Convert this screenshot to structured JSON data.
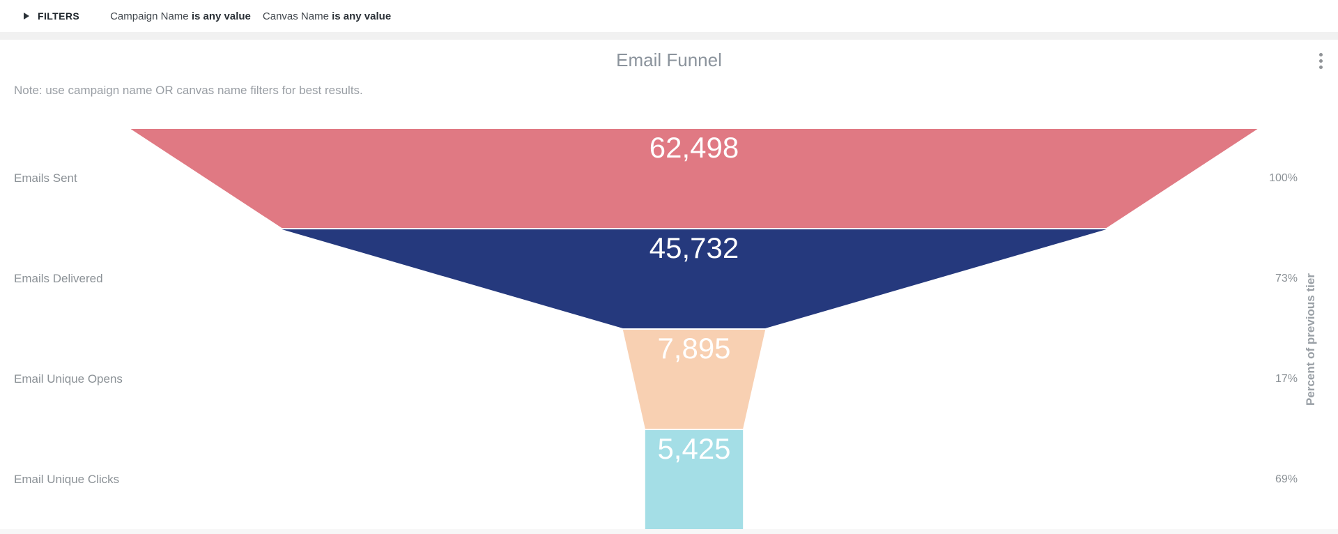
{
  "filters_bar": {
    "label": "FILTERS",
    "filters": [
      {
        "field": "Campaign Name",
        "condition": "is any value"
      },
      {
        "field": "Canvas Name",
        "condition": "is any value"
      }
    ]
  },
  "tile": {
    "title": "Email Funnel",
    "note": "Note: use campaign name OR canvas name filters for best results."
  },
  "chart_data": {
    "type": "funnel",
    "title": "Email Funnel",
    "categories": [
      "Emails Sent",
      "Emails Delivered",
      "Email Unique Opens",
      "Email Unique Clicks"
    ],
    "values": [
      62498,
      45732,
      7895,
      5425
    ],
    "value_labels": [
      "62,498",
      "45,732",
      "7,895",
      "5,425"
    ],
    "percent_of_previous": [
      "100%",
      "73%",
      "17%",
      "69%"
    ],
    "right_axis_label": "Percent of previous tier",
    "colors": [
      "#e07983",
      "#25397d",
      "#f8d0b2",
      "#a4dee6"
    ],
    "value_text_color": "#ffffff",
    "label_color": "#8b9196",
    "legend": "none",
    "orientation": "vertical"
  }
}
